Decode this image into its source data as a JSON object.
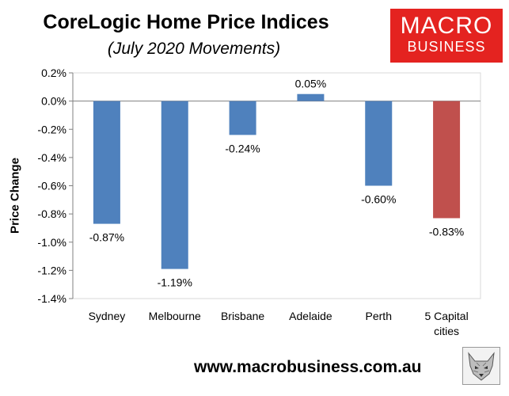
{
  "header": {
    "title": "CoreLogic Home Price Indices",
    "subtitle": "(July 2020 Movements)"
  },
  "logo": {
    "line1": "MACRO",
    "line2": "BUSINESS"
  },
  "footer": {
    "url": "www.macrobusiness.com.au"
  },
  "colors": {
    "bar": "#4f81bd",
    "highlight": "#c0504d",
    "logo_bg": "#e42320"
  },
  "chart_data": {
    "type": "bar",
    "title": "CoreLogic Home Price Indices",
    "subtitle": "(July 2020 Movements)",
    "xlabel": "",
    "ylabel": "Price Change",
    "ylim": [
      -1.4,
      0.2
    ],
    "yticks": [
      "0.2%",
      "0.0%",
      "-0.2%",
      "-0.4%",
      "-0.6%",
      "-0.8%",
      "-1.0%",
      "-1.2%",
      "-1.4%"
    ],
    "ytick_values": [
      0.2,
      0.0,
      -0.2,
      -0.4,
      -0.6,
      -0.8,
      -1.0,
      -1.2,
      -1.4
    ],
    "categories": [
      [
        "Sydney"
      ],
      [
        "Melbourne"
      ],
      [
        "Brisbane"
      ],
      [
        "Adelaide"
      ],
      [
        "Perth"
      ],
      [
        "5 Capital",
        "cities"
      ]
    ],
    "values": [
      -0.87,
      -1.19,
      -0.24,
      0.05,
      -0.6,
      -0.83
    ],
    "data_labels": [
      "-0.87%",
      "-1.19%",
      "-0.24%",
      "0.05%",
      "-0.60%",
      "-0.83%"
    ],
    "highlight_index": 5,
    "grid": false,
    "legend": "none"
  }
}
